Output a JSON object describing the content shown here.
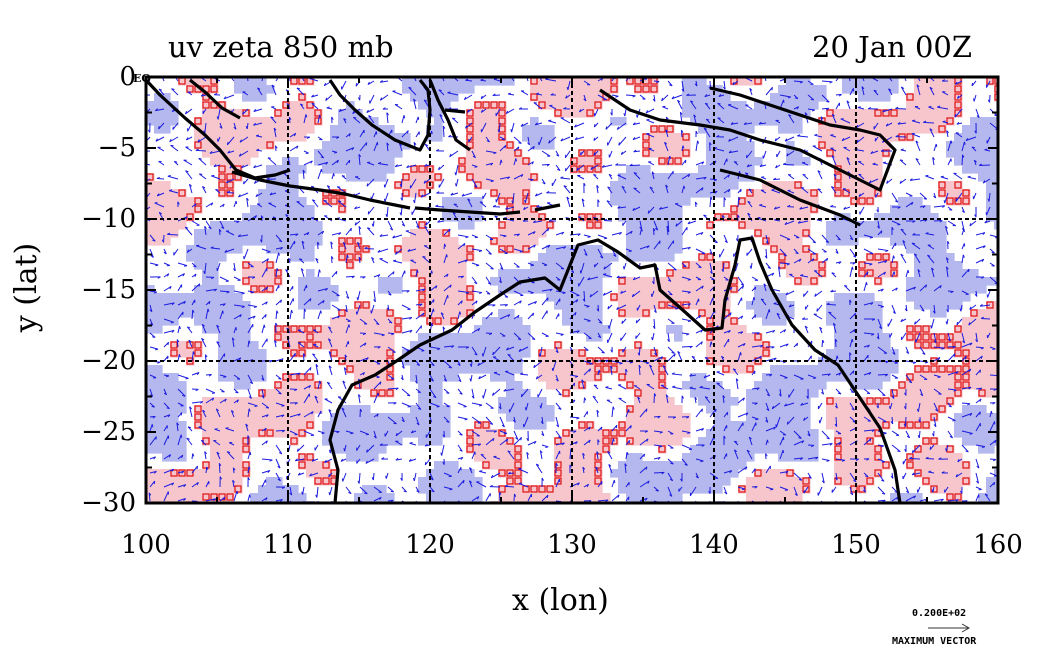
{
  "title": {
    "left": "uv zeta 850 mb",
    "right": "20 Jan 00Z"
  },
  "axes": {
    "xlabel": "x (lon)",
    "ylabel": "y (lat)",
    "xticks": [
      "100",
      "110",
      "120",
      "130",
      "140",
      "150",
      "160"
    ],
    "yticks": [
      "0",
      "−5",
      "−10",
      "−15",
      "−20",
      "−25",
      "−30"
    ],
    "xlim": [
      100,
      160
    ],
    "ylim": [
      -30,
      0
    ],
    "equator_label": "EQ"
  },
  "reference_vector": {
    "magnitude": "0.200E+02",
    "label": "MAXIMUM VECTOR"
  },
  "colors": {
    "positive_fill": "#f6c6cc",
    "negative_fill": "#b4b8ee",
    "contour": "#e01010",
    "vectors": "#1b1be0",
    "coast": "#000000",
    "grid": "#000000"
  },
  "chart_data": {
    "type": "heatmap",
    "title": "uv zeta 850 mb",
    "date": "20 Jan 00Z",
    "xlabel": "x (lon)",
    "ylabel": "y (lat)",
    "xlim": [
      100,
      160
    ],
    "ylim": [
      -30,
      0
    ],
    "grid": true,
    "grid_lines_lon": [
      110,
      120,
      130,
      140,
      150
    ],
    "grid_lines_lat": [
      -10,
      -20
    ],
    "fields": [
      "relative vorticity (shaded, contoured)",
      "wind vectors u,v"
    ],
    "reference_vector": "0.200E+02"
  }
}
